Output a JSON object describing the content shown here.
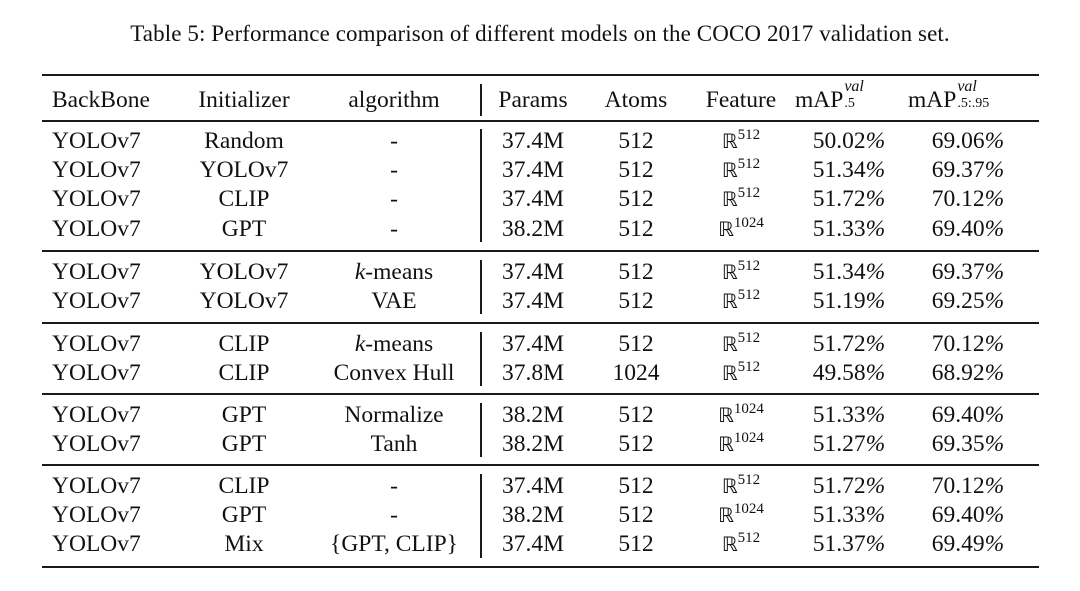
{
  "caption": "Table 5: Performance comparison of different models on the COCO 2017 validation set.",
  "columns": [
    "BackBone",
    "Initializer",
    "algorithm",
    "Params",
    "Atoms",
    "Feature",
    "mAP",
    "mAP"
  ],
  "column_super": {
    "map50": "val",
    "map5095": "val"
  },
  "column_sub": {
    "map50": ".5",
    "map5095": ".5:.95"
  },
  "feature_symbol": "ℝ",
  "groups": [
    [
      [
        "YOLOv7",
        "Random",
        "-",
        "37.4M",
        "512",
        "512",
        "50.02%",
        "69.06%"
      ],
      [
        "YOLOv7",
        "YOLOv7",
        "-",
        "37.4M",
        "512",
        "512",
        "51.34%",
        "69.37%"
      ],
      [
        "YOLOv7",
        "CLIP",
        "-",
        "37.4M",
        "512",
        "512",
        "51.72%",
        "70.12%"
      ],
      [
        "YOLOv7",
        "GPT",
        "-",
        "38.2M",
        "512",
        "1024",
        "51.33%",
        "69.40%"
      ]
    ],
    [
      [
        "YOLOv7",
        "YOLOv7",
        "k-means",
        "37.4M",
        "512",
        "512",
        "51.34%",
        "69.37%"
      ],
      [
        "YOLOv7",
        "YOLOv7",
        "VAE",
        "37.4M",
        "512",
        "512",
        "51.19%",
        "69.25%"
      ]
    ],
    [
      [
        "YOLOv7",
        "CLIP",
        "k-means",
        "37.4M",
        "512",
        "512",
        "51.72%",
        "70.12%"
      ],
      [
        "YOLOv7",
        "CLIP",
        "Convex Hull",
        "37.8M",
        "1024",
        "512",
        "49.58%",
        "68.92%"
      ]
    ],
    [
      [
        "YOLOv7",
        "GPT",
        "Normalize",
        "38.2M",
        "512",
        "1024",
        "51.33%",
        "69.40%"
      ],
      [
        "YOLOv7",
        "GPT",
        "Tanh",
        "38.2M",
        "512",
        "1024",
        "51.27%",
        "69.35%"
      ]
    ],
    [
      [
        "YOLOv7",
        "CLIP",
        "-",
        "37.4M",
        "512",
        "512",
        "51.72%",
        "70.12%"
      ],
      [
        "YOLOv7",
        "GPT",
        "-",
        "38.2M",
        "512",
        "1024",
        "51.33%",
        "69.40%"
      ],
      [
        "YOLOv7",
        "Mix",
        "{GPT, CLIP}",
        "37.4M",
        "512",
        "512",
        "51.37%",
        "69.49%"
      ]
    ]
  ]
}
